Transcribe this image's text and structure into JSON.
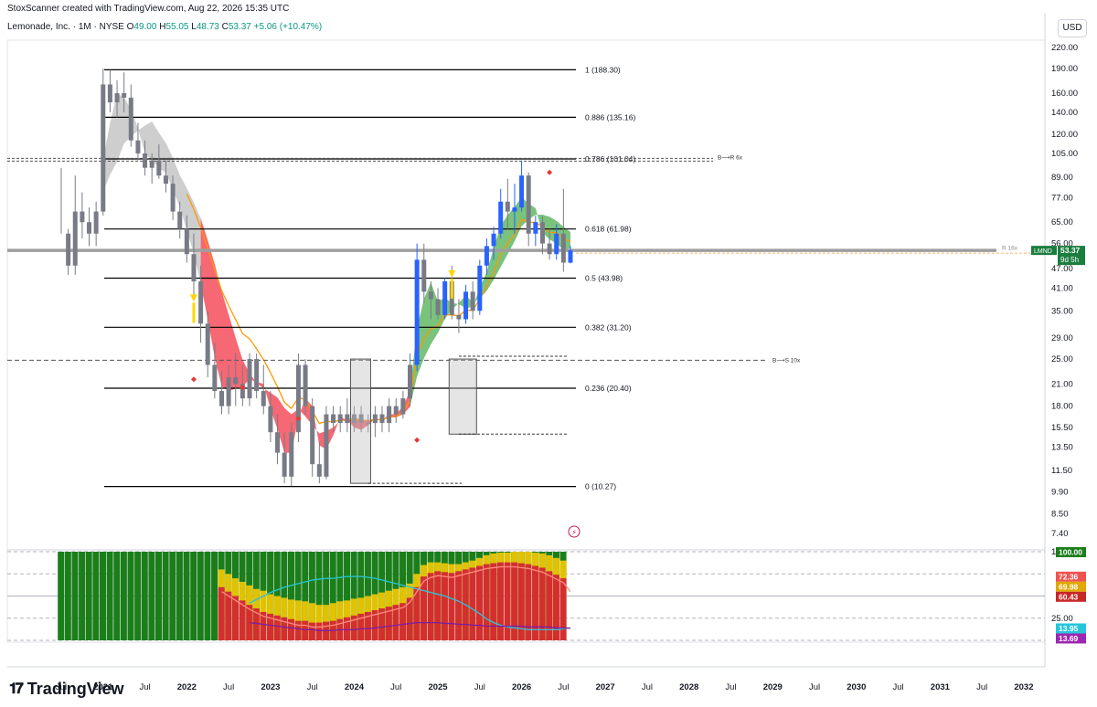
{
  "header": {
    "attribution": "StoxScanner created with TradingView.com, Aug 22, 2026 15:35 UTC",
    "symbol": "Lemonade, Inc. · 1M · NYSE",
    "ohlc": [
      {
        "k": "O",
        "v": "49.00"
      },
      {
        "k": "H",
        "v": "55.05"
      },
      {
        "k": "L",
        "v": "48.73"
      },
      {
        "k": "C",
        "v": "53.37"
      },
      {
        "k": "",
        "v": "+5.06 (+10.47%)"
      }
    ],
    "currency": "USD"
  },
  "footer": {
    "brand": "TradingView"
  },
  "colors": {
    "up": "#2962ff",
    "down": "#787b86",
    "bull_cloud": "#4caf50",
    "bear_cloud": "#f23645",
    "orange_ma": "#ff9800",
    "fib": "#000000",
    "price_line": "#9e9e9e",
    "osc_green": "#1b7e1b",
    "osc_yellow": "#e0c200",
    "osc_red": "#d32f2f",
    "osc_cyan": "#26c6da",
    "osc_purple": "#7b1fa2"
  },
  "chart_data": {
    "type": "candlestick",
    "title": "Lemonade, Inc. · 1M · NYSE",
    "y_scale": "log",
    "y_ticks": [
      "220.00",
      "190.00",
      "160.00",
      "140.00",
      "120.00",
      "105.00",
      "89.00",
      "77.00",
      "65.00",
      "56.00",
      "47.00",
      "41.00",
      "35.00",
      "29.00",
      "25.00",
      "21.00",
      "18.00",
      "15.50",
      "13.50",
      "11.50",
      "9.90",
      "8.50",
      "7.40"
    ],
    "x_ticks": [
      "Jul",
      "2021",
      "Jul",
      "2022",
      "Jul",
      "2023",
      "Jul",
      "2024",
      "Jul",
      "2025",
      "Jul",
      "2026",
      "Jul",
      "2027",
      "Jul",
      "2028",
      "Jul",
      "2029",
      "Jul",
      "2030",
      "Jul",
      "2031",
      "Jul",
      "2032"
    ],
    "x_start": "2020-07",
    "candles": [
      [
        null,
        95,
        60,
        null
      ],
      [
        60,
        62,
        45,
        48
      ],
      [
        48,
        90,
        45,
        70
      ],
      [
        70,
        80,
        58,
        65
      ],
      [
        65,
        72,
        55,
        60
      ],
      [
        60,
        75,
        55,
        70
      ],
      [
        70,
        190,
        68,
        170
      ],
      [
        170,
        188,
        140,
        150
      ],
      [
        150,
        175,
        135,
        160
      ],
      [
        160,
        185,
        140,
        155
      ],
      [
        155,
        170,
        110,
        115
      ],
      [
        115,
        130,
        100,
        105
      ],
      [
        105,
        115,
        90,
        95
      ],
      [
        95,
        105,
        85,
        100
      ],
      [
        100,
        112,
        88,
        90
      ],
      [
        90,
        100,
        80,
        85
      ],
      [
        85,
        90,
        66,
        70
      ],
      [
        70,
        75,
        58,
        62
      ],
      [
        62,
        68,
        49,
        52
      ],
      [
        52,
        60,
        39,
        43
      ],
      [
        43,
        48,
        28,
        32
      ],
      [
        32,
        35,
        22,
        24
      ],
      [
        24,
        28,
        19,
        20
      ],
      [
        20,
        23,
        17,
        18
      ],
      [
        18,
        24,
        17,
        22
      ],
      [
        22,
        26,
        18,
        21
      ],
      [
        21,
        24,
        18,
        19
      ],
      [
        19,
        26,
        18,
        25
      ],
      [
        25,
        26,
        19,
        20
      ],
      [
        20,
        24,
        17,
        18
      ],
      [
        18,
        20,
        14,
        15
      ],
      [
        15,
        17,
        12,
        13
      ],
      [
        13,
        15,
        10.5,
        11
      ],
      [
        11,
        16,
        10.3,
        15
      ],
      [
        15,
        26,
        14,
        24
      ],
      [
        24,
        25,
        17,
        18
      ],
      [
        18,
        19,
        11,
        12
      ],
      [
        12,
        14,
        10.5,
        11
      ],
      [
        11,
        18,
        10.8,
        17
      ],
      [
        17,
        18,
        15,
        16
      ],
      [
        16,
        18,
        15,
        17
      ],
      [
        17,
        19,
        15,
        16
      ],
      [
        16,
        18,
        15,
        17
      ],
      [
        17,
        18,
        15,
        16
      ],
      [
        16,
        17,
        15,
        16
      ],
      [
        16,
        18,
        14.5,
        17
      ],
      [
        17,
        18,
        15,
        16
      ],
      [
        16,
        19,
        15,
        18
      ],
      [
        18,
        19,
        16,
        17
      ],
      [
        17,
        20,
        16.5,
        19
      ],
      [
        19,
        26,
        18,
        24
      ],
      [
        24,
        56,
        23,
        50
      ],
      [
        50,
        56,
        37,
        40
      ],
      [
        40,
        43,
        33,
        38
      ],
      [
        38,
        41,
        33,
        34
      ],
      [
        34,
        44,
        33,
        43
      ],
      [
        43,
        48,
        33,
        34
      ],
      [
        34,
        38,
        30,
        33
      ],
      [
        33,
        42,
        32,
        40
      ],
      [
        40,
        43,
        33,
        35
      ],
      [
        35,
        50,
        34,
        48
      ],
      [
        48,
        58,
        45,
        55
      ],
      [
        55,
        63,
        50,
        60
      ],
      [
        60,
        82,
        58,
        75
      ],
      [
        75,
        88,
        62,
        70
      ],
      [
        70,
        85,
        60,
        72
      ],
      [
        72,
        100,
        70,
        90
      ],
      [
        90,
        92,
        55,
        60
      ],
      [
        60,
        68,
        55,
        65
      ],
      [
        65,
        68,
        52,
        56
      ],
      [
        56,
        62,
        50,
        52
      ],
      [
        52,
        64,
        50,
        60
      ],
      [
        60,
        82,
        46,
        49
      ],
      [
        49,
        55.05,
        48.73,
        53.37
      ]
    ],
    "fib_levels": [
      {
        "label": "1 (188.30)",
        "price": 188.3
      },
      {
        "label": "0.886 (135.16)",
        "price": 135.16
      },
      {
        "label": "0.786 (101.04)",
        "price": 101.04
      },
      {
        "label": "0.618 (61.98)",
        "price": 61.98
      },
      {
        "label": "0.5 (43.98)",
        "price": 43.98
      },
      {
        "label": "0.382 (31.20)",
        "price": 31.2
      },
      {
        "label": "0.236 (20.40)",
        "price": 20.4
      },
      {
        "label": "0 (10.27)",
        "price": 10.27
      }
    ],
    "annotations": [
      {
        "text": "B⟶R 6x",
        "price": 100.2
      },
      {
        "text": "B⟶S 10x",
        "price": 24.8
      },
      {
        "text": "R 16x",
        "price": 54.0
      }
    ],
    "last_price": {
      "symbol": "LMND",
      "price": "53.37",
      "countdown": "9d 5h",
      "value": 53.37
    },
    "oscillator": {
      "ticks": [
        "100.00",
        "25.00"
      ],
      "labels": [
        {
          "text": "100.00",
          "value": 100,
          "color": "#1b7e1b"
        },
        {
          "text": "72.36",
          "value": 72.36,
          "color": "#ef5350"
        },
        {
          "text": "69.98",
          "value": 69.98,
          "color": "#e0a800"
        },
        {
          "text": "60.43",
          "value": 60.43,
          "color": "#c62828"
        },
        {
          "text": "13.95",
          "value": 13.95,
          "color": "#26c6da"
        },
        {
          "text": "13.69",
          "value": 13.69,
          "color": "#9c27b0"
        }
      ],
      "green": [
        100,
        100,
        100,
        100,
        100,
        100,
        100,
        100,
        100,
        100,
        100,
        100,
        100,
        100,
        100,
        100,
        100,
        100,
        100,
        100,
        100,
        100,
        100,
        100,
        100,
        100,
        100,
        100,
        100,
        100,
        100,
        100,
        100,
        100,
        100,
        100,
        100,
        100,
        100,
        100,
        100,
        100,
        100,
        100,
        100,
        100,
        100,
        100,
        100,
        100,
        100,
        100,
        100,
        100,
        100,
        100,
        100,
        100,
        100,
        100,
        100,
        100,
        100,
        100,
        100,
        100,
        100,
        100,
        100,
        100,
        100,
        100,
        100
      ],
      "yellow": [
        0,
        0,
        0,
        0,
        0,
        0,
        0,
        0,
        0,
        0,
        0,
        0,
        0,
        0,
        0,
        0,
        0,
        0,
        0,
        0,
        0,
        0,
        0,
        80,
        75,
        70,
        66,
        62,
        58,
        56,
        52,
        50,
        48,
        46,
        45,
        44,
        42,
        40,
        40,
        42,
        44,
        45,
        47,
        48,
        50,
        52,
        54,
        56,
        58,
        60,
        64,
        75,
        85,
        88,
        88,
        87,
        86,
        86,
        88,
        90,
        93,
        96,
        98,
        99,
        99,
        100,
        100,
        100,
        99,
        98,
        96,
        93,
        90,
        72
      ],
      "red": [
        0,
        0,
        0,
        0,
        0,
        0,
        0,
        0,
        0,
        0,
        0,
        0,
        0,
        0,
        0,
        0,
        0,
        0,
        0,
        0,
        0,
        0,
        0,
        60,
        55,
        50,
        45,
        40,
        36,
        32,
        30,
        28,
        26,
        24,
        22,
        22,
        20,
        20,
        21,
        22,
        24,
        26,
        28,
        30,
        32,
        34,
        36,
        38,
        40,
        42,
        48,
        60,
        72,
        76,
        78,
        77,
        76,
        78,
        80,
        82,
        84,
        86,
        87,
        88,
        88,
        88,
        87,
        86,
        84,
        82,
        78,
        74,
        70,
        60
      ],
      "cyan": [
        null,
        null,
        null,
        null,
        null,
        null,
        null,
        null,
        null,
        null,
        null,
        null,
        null,
        null,
        null,
        null,
        null,
        null,
        null,
        null,
        null,
        null,
        null,
        null,
        null,
        null,
        null,
        42,
        46,
        50,
        54,
        57,
        60,
        62,
        64,
        66,
        68,
        69,
        70,
        70,
        71,
        72,
        72,
        72,
        71,
        70,
        68,
        66,
        64,
        62,
        60,
        58,
        56,
        54,
        52,
        50,
        47,
        44,
        40,
        35,
        30,
        24,
        20,
        17,
        15,
        14,
        13,
        12,
        12,
        12,
        12,
        12,
        13,
        14
      ],
      "purple": [
        null,
        null,
        null,
        null,
        null,
        null,
        null,
        null,
        null,
        null,
        null,
        null,
        null,
        null,
        null,
        null,
        null,
        null,
        null,
        null,
        null,
        null,
        null,
        null,
        null,
        null,
        null,
        20,
        19,
        18,
        17,
        16,
        15,
        14,
        13,
        12,
        12,
        11,
        11,
        11,
        12,
        12,
        12,
        13,
        13,
        14,
        15,
        16,
        17,
        18,
        19,
        20,
        20,
        20,
        20,
        19,
        19,
        18,
        18,
        17,
        17,
        16,
        16,
        16,
        16,
        16,
        16,
        15,
        15,
        15,
        15,
        14,
        14,
        13.7
      ]
    }
  }
}
